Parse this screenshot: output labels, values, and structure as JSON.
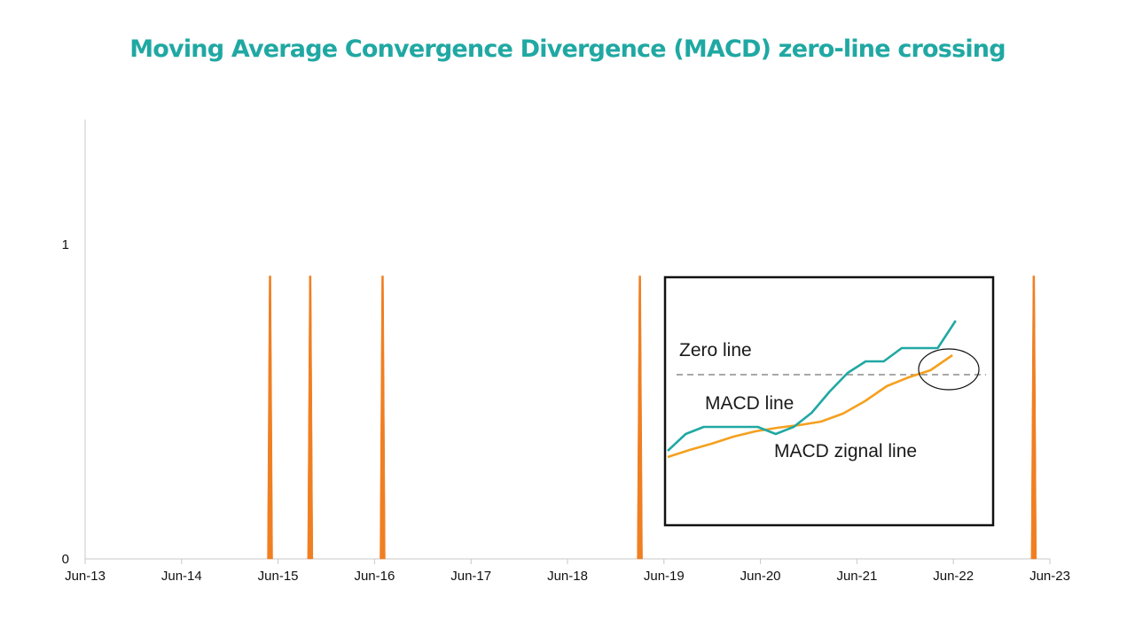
{
  "chart_data": {
    "type": "bar",
    "title": "Moving Average Convergence Divergence (MACD) zero-line crossing",
    "x_tick_labels": [
      "Jun-13",
      "Jun-14",
      "Jun-15",
      "Jun-16",
      "Jun-17",
      "Jun-18",
      "Jun-19",
      "Jun-20",
      "Jun-21",
      "Jun-22",
      "Jun-23"
    ],
    "x_range": [
      "2013-06",
      "2023-06"
    ],
    "y_tick_labels": [
      "0",
      "1"
    ],
    "ylim": [
      0,
      1.4
    ],
    "crossing_dates": [
      "2015-05",
      "2015-10",
      "2016-07",
      "2019-03",
      "2023-04"
    ],
    "crossing_values": [
      0.9,
      0.9,
      0.9,
      0.9,
      0.9
    ],
    "grid": false,
    "colors": {
      "spike": "#f07f22",
      "axis": "#c8c8c8",
      "macd_line": "#20a8a3",
      "signal_line": "#f5a01e",
      "zero_line": "#8c8c8c",
      "title": "#20a8a3"
    },
    "inset": {
      "labels": {
        "zero_line": "Zero line",
        "macd_line": "MACD line",
        "signal_line": "MACD zignal line"
      },
      "macd_values": [
        -0.86,
        -0.67,
        -0.59,
        -0.59,
        -0.59,
        -0.59,
        -0.67,
        -0.59,
        -0.43,
        -0.19,
        0.02,
        0.15,
        0.15,
        0.3,
        0.3,
        0.3,
        0.61
      ],
      "signal_values": [
        -0.93,
        -0.85,
        -0.78,
        -0.7,
        -0.64,
        -0.6,
        -0.57,
        -0.53,
        -0.44,
        -0.3,
        -0.13,
        -0.03,
        0.05,
        0.22
      ]
    }
  }
}
